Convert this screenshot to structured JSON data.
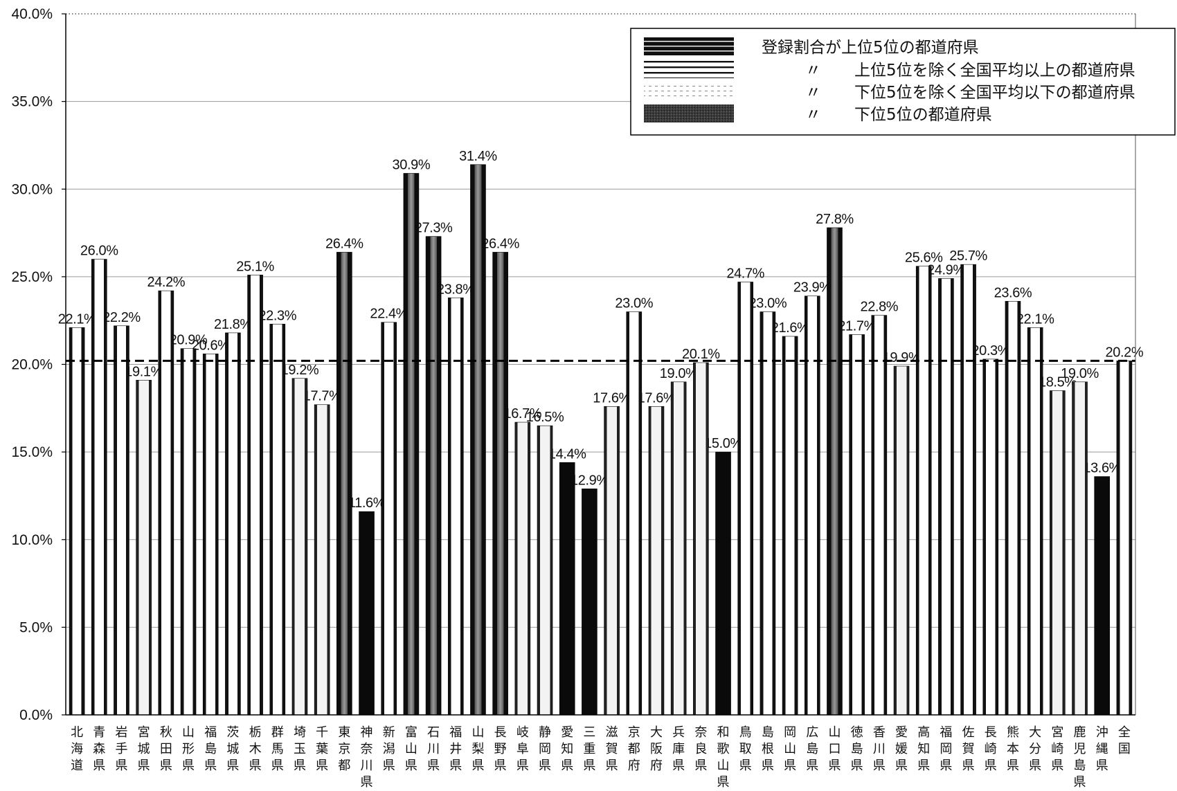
{
  "chart_data": {
    "type": "bar",
    "categories": [
      "北海道",
      "青森県",
      "岩手県",
      "宮城県",
      "秋田県",
      "山形県",
      "福島県",
      "茨城県",
      "栃木県",
      "群馬県",
      "埼玉県",
      "千葉県",
      "東京都",
      "神奈川県",
      "新潟県",
      "富山県",
      "石川県",
      "福井県",
      "山梨県",
      "長野県",
      "岐阜県",
      "静岡県",
      "愛知県",
      "三重県",
      "滋賀県",
      "京都府",
      "大阪府",
      "兵庫県",
      "奈良県",
      "和歌山県",
      "鳥取県",
      "島根県",
      "岡山県",
      "広島県",
      "山口県",
      "徳島県",
      "香川県",
      "愛媛県",
      "高知県",
      "福岡県",
      "佐賀県",
      "長崎県",
      "熊本県",
      "大分県",
      "宮崎県",
      "鹿児島県",
      "沖縄県",
      "全国"
    ],
    "values": [
      22.1,
      26.0,
      22.2,
      19.1,
      24.2,
      20.9,
      20.6,
      21.8,
      25.1,
      22.3,
      19.2,
      17.7,
      26.4,
      11.6,
      22.4,
      30.9,
      27.3,
      23.8,
      31.4,
      26.4,
      16.7,
      16.5,
      14.4,
      12.9,
      17.6,
      23.0,
      17.6,
      19.0,
      20.1,
      15.0,
      24.7,
      23.0,
      21.6,
      23.9,
      27.8,
      21.7,
      22.8,
      19.9,
      25.6,
      24.9,
      25.7,
      20.3,
      23.6,
      22.1,
      18.5,
      19.0,
      13.6,
      20.2
    ],
    "data_labels": [
      "22.1%",
      "26.0%",
      "22.2%",
      "19.1%",
      "24.2%",
      "20.9%",
      "20.6%",
      "21.8%",
      "25.1%",
      "22.3%",
      "19.2%",
      "17.7%",
      "26.4%",
      "11.6%",
      "22.4%",
      "30.9%",
      "27.3%",
      "23.8%",
      "31.4%",
      "26.4%",
      "16.7%",
      "16.5%",
      "14.4%",
      "12.9%",
      "17.6%",
      "23.0%",
      "17.6%",
      "19.0%",
      "20.1%",
      "15.0%",
      "24.7%",
      "23.0%",
      "21.6%",
      "23.9%",
      "27.8%",
      "21.7%",
      "22.8%",
      "19.9%",
      "25.6%",
      "24.9%",
      "25.7%",
      "20.3%",
      "23.6%",
      "22.1%",
      "18.5%",
      "19.0%",
      "13.6%",
      "20.2%"
    ],
    "groups": [
      1,
      1,
      1,
      2,
      1,
      1,
      1,
      1,
      1,
      1,
      2,
      2,
      0,
      3,
      1,
      0,
      0,
      1,
      0,
      0,
      2,
      2,
      3,
      3,
      2,
      1,
      2,
      2,
      2,
      3,
      1,
      1,
      1,
      1,
      0,
      1,
      1,
      2,
      1,
      1,
      1,
      1,
      1,
      1,
      2,
      2,
      3,
      1
    ],
    "ylim": [
      0,
      40
    ],
    "yticks": [
      {
        "value": 0,
        "label": "0.0%"
      },
      {
        "value": 5,
        "label": "5.0%"
      },
      {
        "value": 10,
        "label": "10.0%"
      },
      {
        "value": 15,
        "label": "15.0%"
      },
      {
        "value": 20,
        "label": "20.0%"
      },
      {
        "value": 25,
        "label": "25.0%"
      },
      {
        "value": 30,
        "label": "30.0%"
      },
      {
        "value": 35,
        "label": "35.0%"
      },
      {
        "value": 40,
        "label": "40.0%"
      }
    ],
    "grid": true,
    "reference_line": {
      "value": 20.2,
      "dashed": true
    },
    "legend": {
      "position": "top-right",
      "entries": [
        {
          "label": "登録割合が上位5位の都道府県"
        },
        {
          "ditto": "〃",
          "label": "上位5位を除く全国平均以上の都道府県"
        },
        {
          "ditto": "〃",
          "label": "下位5位を除く全国平均以下の都道府県"
        },
        {
          "ditto": "〃",
          "label": "下位5位の都道府県"
        }
      ]
    }
  }
}
